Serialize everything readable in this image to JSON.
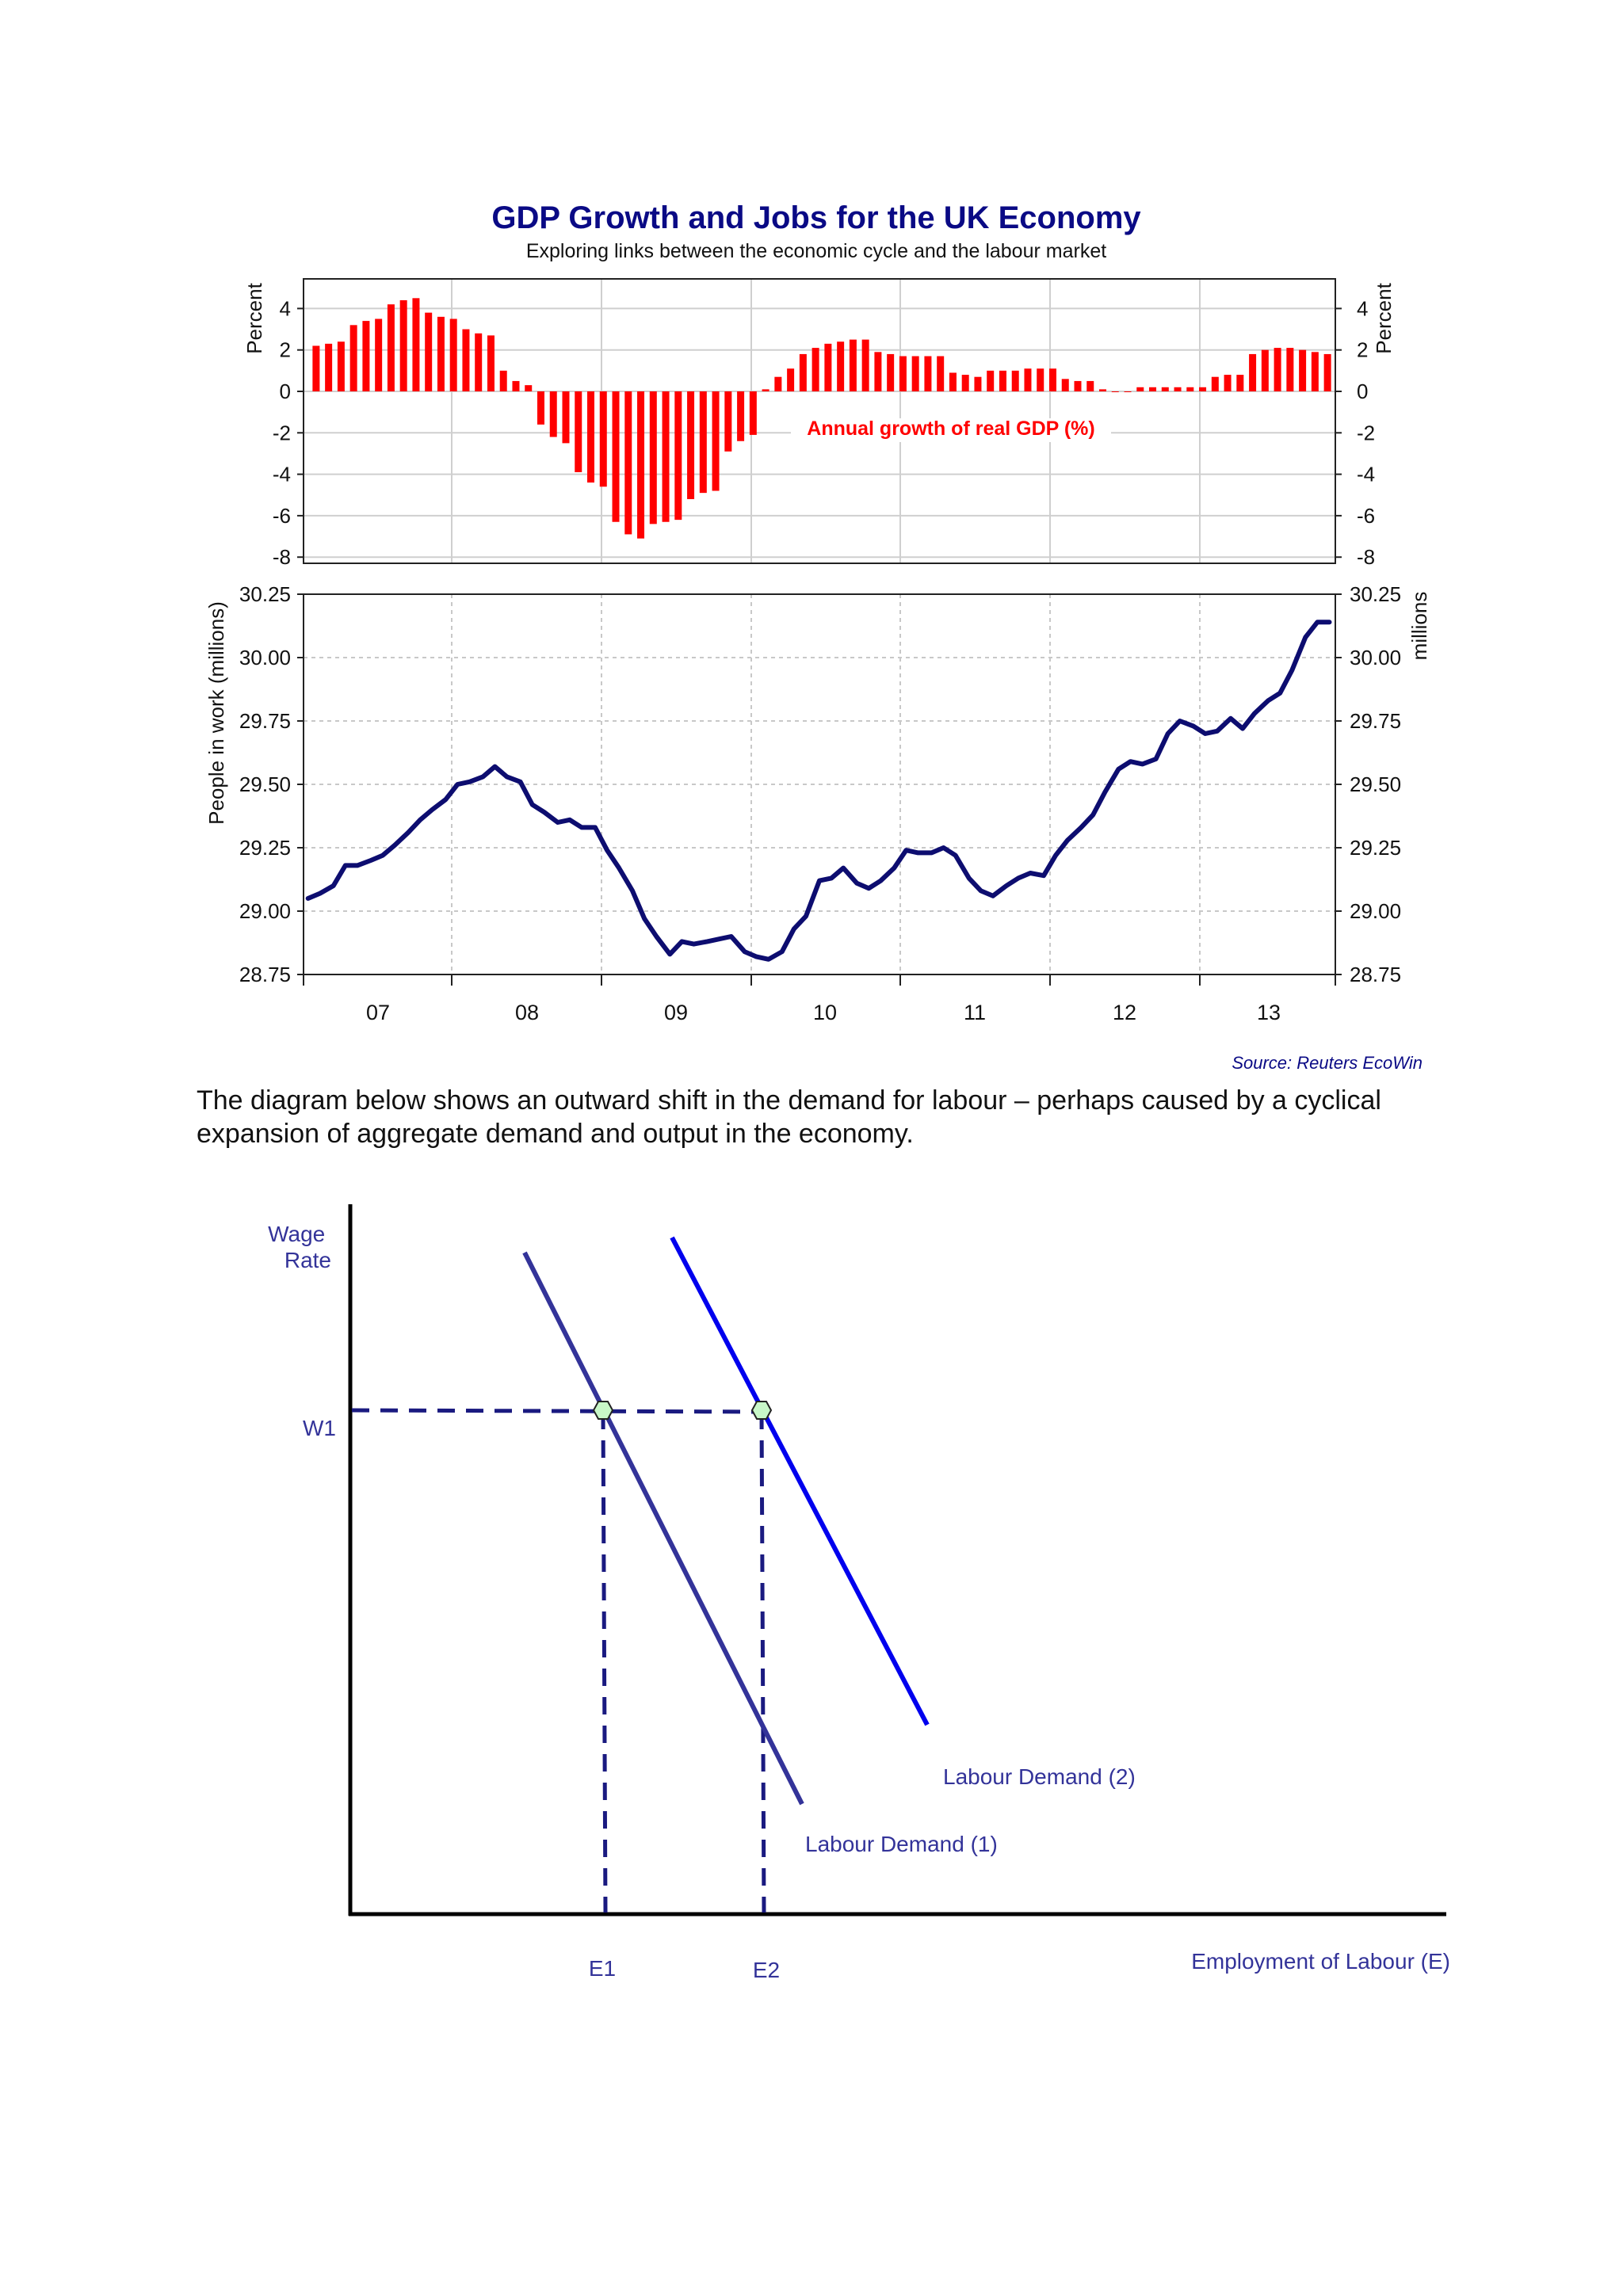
{
  "chart_title": "GDP Growth and Jobs for the UK Economy",
  "chart_subtitle": "Exploring links between the economic cycle and the labour market",
  "source": "Source: Reuters EcoWin",
  "paragraph": "The diagram below shows an outward shift in the demand for labour – perhaps caused by a cyclical expansion of aggregate demand and output in the economy.",
  "colors": {
    "title": "#0a0a85",
    "bars": "#ff0000",
    "line": "#0d0d70",
    "diagram": "#333399",
    "demand2": "#0000ee",
    "marker": "#c8f7c8"
  },
  "chart_data": [
    {
      "type": "bar",
      "title": "GDP Growth and Jobs for the UK Economy",
      "subtitle": "Exploring links between the economic cycle and the labour market",
      "ylabel": "Percent",
      "ylabel_right": "Percent",
      "ylim": [
        -8,
        5
      ],
      "yticks": [
        "4",
        "2",
        "0",
        "-2",
        "-4",
        "-6",
        "-8"
      ],
      "grid": true,
      "series": [
        {
          "name": "Annual growth of real GDP (%)",
          "values": [
            2.2,
            2.3,
            2.4,
            3.2,
            3.4,
            3.5,
            4.2,
            4.4,
            4.5,
            3.8,
            3.6,
            3.5,
            3.0,
            2.8,
            2.7,
            1.0,
            0.5,
            0.3,
            -1.6,
            -2.2,
            -2.5,
            -3.9,
            -4.4,
            -4.6,
            -6.3,
            -6.9,
            -7.1,
            -6.4,
            -6.3,
            -6.2,
            -5.2,
            -4.9,
            -4.8,
            -2.9,
            -2.4,
            -2.1,
            0.1,
            0.7,
            1.1,
            1.8,
            2.1,
            2.3,
            2.4,
            2.5,
            2.5,
            1.9,
            1.8,
            1.7,
            1.7,
            1.7,
            1.7,
            0.9,
            0.8,
            0.7,
            1.0,
            1.0,
            1.0,
            1.1,
            1.1,
            1.1,
            0.6,
            0.5,
            0.5,
            0.1,
            0.0,
            0.0,
            0.2,
            0.2,
            0.2,
            0.2,
            0.2,
            0.2,
            0.7,
            0.8,
            0.8,
            1.8,
            2.0,
            2.1,
            2.1,
            2.0,
            1.9,
            1.8
          ]
        }
      ]
    },
    {
      "type": "line",
      "ylabel": "People in work (millions)",
      "ylabel_right": "millions",
      "ylim": [
        28.75,
        30.25
      ],
      "yticks": [
        "30.25",
        "30.00",
        "29.75",
        "29.50",
        "29.25",
        "29.00",
        "28.75"
      ],
      "x_tick_labels": [
        "07",
        "08",
        "09",
        "10",
        "11",
        "12",
        "13"
      ],
      "x_range": [
        2006.5,
        2013.4
      ],
      "grid": true,
      "series": [
        {
          "name": "People in work",
          "x": [
            2006.53,
            2006.61,
            2006.7,
            2006.78,
            2006.86,
            2006.95,
            2007.03,
            2007.11,
            2007.2,
            2007.28,
            2007.36,
            2007.45,
            2007.53,
            2007.61,
            2007.7,
            2007.78,
            2007.86,
            2007.95,
            2008.03,
            2008.11,
            2008.2,
            2008.28,
            2008.36,
            2008.45,
            2008.53,
            2008.61,
            2008.7,
            2008.78,
            2008.86,
            2008.95,
            2009.03,
            2009.11,
            2009.2,
            2009.28,
            2009.36,
            2009.45,
            2009.53,
            2009.61,
            2009.7,
            2009.78,
            2009.86,
            2009.95,
            2010.03,
            2010.11,
            2010.2,
            2010.28,
            2010.36,
            2010.45,
            2010.53,
            2010.61,
            2010.7,
            2010.78,
            2010.86,
            2010.95,
            2011.03,
            2011.11,
            2011.2,
            2011.28,
            2011.36,
            2011.45,
            2011.53,
            2011.61,
            2011.7,
            2011.78,
            2011.86,
            2011.95,
            2012.03,
            2012.11,
            2012.2,
            2012.28,
            2012.36,
            2012.45,
            2012.53,
            2012.61,
            2012.7,
            2012.78,
            2012.86,
            2012.95,
            2013.03,
            2013.11,
            2013.2,
            2013.28,
            2013.36
          ],
          "values": [
            29.05,
            29.07,
            29.1,
            29.18,
            29.18,
            29.2,
            29.22,
            29.26,
            29.31,
            29.36,
            29.4,
            29.44,
            29.5,
            29.51,
            29.53,
            29.57,
            29.53,
            29.51,
            29.42,
            29.39,
            29.35,
            29.36,
            29.33,
            29.33,
            29.24,
            29.17,
            29.08,
            28.97,
            28.9,
            28.83,
            28.88,
            28.87,
            28.88,
            28.89,
            28.9,
            28.84,
            28.82,
            28.81,
            28.84,
            28.93,
            28.98,
            29.12,
            29.13,
            29.17,
            29.11,
            29.09,
            29.12,
            29.17,
            29.24,
            29.23,
            29.23,
            29.25,
            29.22,
            29.13,
            29.08,
            29.06,
            29.1,
            29.13,
            29.15,
            29.14,
            29.22,
            29.28,
            29.33,
            29.38,
            29.47,
            29.56,
            29.59,
            29.58,
            29.6,
            29.7,
            29.75,
            29.73,
            29.7,
            29.71,
            29.76,
            29.72,
            29.78,
            29.83,
            29.86,
            29.95,
            30.08,
            30.14,
            30.14
          ]
        }
      ]
    },
    {
      "type": "line",
      "ylabel": "Wage Rate",
      "xlabel": "Employment of Labour (E)",
      "y_tick_labels": [
        "W1"
      ],
      "x_tick_labels": [
        "E1",
        "E2"
      ],
      "series": [
        {
          "name": "Labour Demand (1)"
        },
        {
          "name": "Labour Demand (2)"
        }
      ]
    }
  ]
}
